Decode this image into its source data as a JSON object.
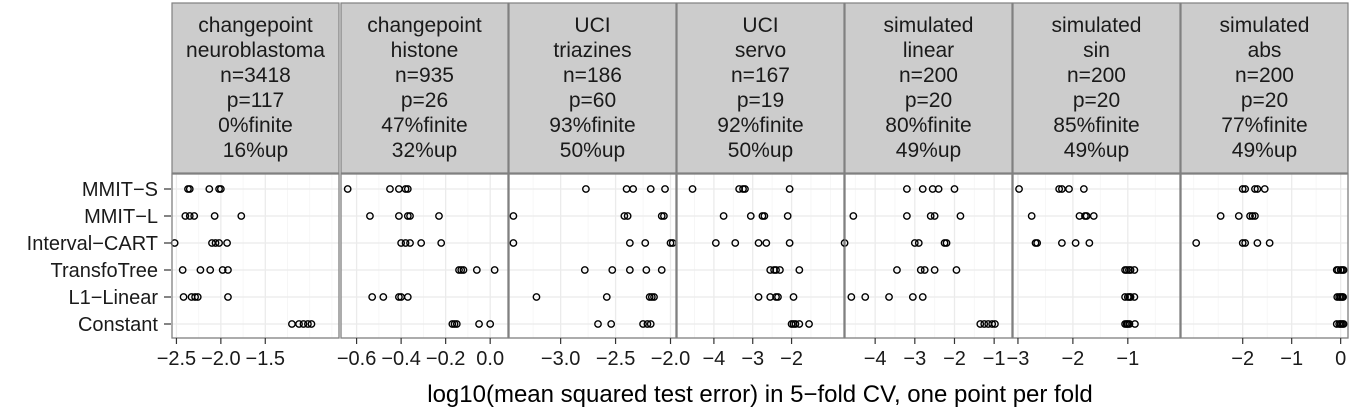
{
  "chart_data": {
    "type": "scatter",
    "xlabel": "log10(mean squared test error) in 5−fold CV, one point per fold",
    "ylabel": "",
    "title": "",
    "grid": true,
    "categories": [
      "MMIT−S",
      "MMIT−L",
      "Interval−CART",
      "TransfoTree",
      "L1−Linear",
      "Constant"
    ],
    "panels": [
      {
        "strip": [
          "changepoint",
          "neuroblastoma",
          "n=3418",
          "p=117",
          "0%finite",
          "16%up"
        ],
        "xlim": [
          -2.55,
          -0.67
        ],
        "ticks": [
          -2.5,
          -2.0,
          -1.5
        ],
        "tick_labels": [
          "−2.5",
          "−2.0",
          "−1.5"
        ],
        "points": {
          "MMIT−S": [
            -2.37,
            -2.35,
            -2.13,
            -2.02,
            -2.0
          ],
          "MMIT−L": [
            -2.4,
            -2.3,
            -2.07,
            -2.35,
            -1.77
          ],
          "Interval−CART": [
            -2.52,
            -2.1,
            -2.06,
            -2.02,
            -1.93
          ],
          "TransfoTree": [
            -2.43,
            -2.23,
            -2.12,
            -1.98,
            -1.92
          ],
          "L1−Linear": [
            -2.42,
            -2.33,
            -2.29,
            -2.26,
            -1.92
          ],
          "Constant": [
            -1.2,
            -1.12,
            -1.07,
            -1.02,
            -0.98
          ]
        }
      },
      {
        "strip": [
          "changepoint",
          "histone",
          "n=935",
          "p=26",
          "47%finite",
          "32%up"
        ],
        "xlim": [
          -0.67,
          0.08
        ],
        "ticks": [
          -0.6,
          -0.4,
          -0.2,
          0.0
        ],
        "tick_labels": [
          "−0.6",
          "−0.4",
          "−0.2",
          "0.0"
        ],
        "points": {
          "MMIT−S": [
            -0.64,
            -0.45,
            -0.41,
            -0.38,
            -0.37
          ],
          "MMIT−L": [
            -0.54,
            -0.41,
            -0.37,
            -0.36,
            -0.23
          ],
          "Interval−CART": [
            -0.4,
            -0.38,
            -0.36,
            -0.31,
            -0.22
          ],
          "TransfoTree": [
            -0.14,
            -0.13,
            -0.12,
            -0.06,
            0.02
          ],
          "L1−Linear": [
            -0.53,
            -0.48,
            -0.41,
            -0.4,
            -0.37
          ],
          "Constant": [
            -0.17,
            -0.16,
            -0.15,
            -0.05,
            -0.0
          ]
        }
      },
      {
        "strip": [
          "UCI",
          "triazines",
          "n=186",
          "p=60",
          "93%finite",
          "50%up"
        ],
        "xlim": [
          -3.47,
          -1.95
        ],
        "ticks": [
          -3.0,
          -2.5,
          -2.0
        ],
        "tick_labels": [
          "−3.0",
          "−2.5",
          "−2.0"
        ],
        "points": {
          "MMIT−S": [
            -2.77,
            -2.4,
            -2.34,
            -2.18,
            -2.05
          ],
          "MMIT−L": [
            -3.43,
            -2.42,
            -2.39,
            -2.08,
            -2.06
          ],
          "Interval−CART": [
            -3.43,
            -2.37,
            -2.23,
            -2.0,
            -1.98
          ],
          "TransfoTree": [
            -2.78,
            -2.53,
            -2.37,
            -2.22,
            -2.08
          ],
          "L1−Linear": [
            -3.22,
            -2.58,
            -2.19,
            -2.17,
            -2.15
          ],
          "Constant": [
            -2.66,
            -2.54,
            -2.25,
            -2.21,
            -2.18
          ]
        }
      },
      {
        "strip": [
          "UCI",
          "servo",
          "n=167",
          "p=19",
          "92%finite",
          "50%up"
        ],
        "xlim": [
          -4.95,
          -0.65
        ],
        "ticks": [
          -4,
          -3,
          -2
        ],
        "tick_labels": [
          "−4",
          "−3",
          "−2"
        ],
        "points": {
          "MMIT−S": [
            -4.55,
            -3.35,
            -3.25,
            -3.2,
            -2.05
          ],
          "MMIT−L": [
            -3.75,
            -3.05,
            -2.75,
            -2.7,
            -2.1
          ],
          "Interval−CART": [
            -3.95,
            -3.45,
            -2.85,
            -2.65,
            -2.05
          ],
          "TransfoTree": [
            -2.55,
            -2.45,
            -2.4,
            -2.3,
            -1.8
          ],
          "L1−Linear": [
            -2.85,
            -2.55,
            -2.4,
            -2.35,
            -1.95
          ],
          "Constant": [
            -2.0,
            -1.95,
            -1.9,
            -1.8,
            -1.55
          ]
        }
      },
      {
        "strip": [
          "simulated",
          "linear",
          "n=200",
          "p=20",
          "80%finite",
          "49%up"
        ],
        "xlim": [
          -4.76,
          -0.55
        ],
        "ticks": [
          -4,
          -3,
          -2,
          -1
        ],
        "tick_labels": [
          "−4",
          "−3",
          "−2",
          "−1"
        ],
        "points": {
          "MMIT−S": [
            -3.2,
            -2.8,
            -2.55,
            -2.4,
            -2.0
          ],
          "MMIT−L": [
            -4.55,
            -3.2,
            -2.6,
            -2.5,
            -1.85
          ],
          "Interval−CART": [
            -4.77,
            -3.0,
            -2.9,
            -2.25,
            -2.2
          ],
          "TransfoTree": [
            -3.45,
            -2.85,
            -2.75,
            -2.5,
            -1.95
          ],
          "L1−Linear": [
            -4.6,
            -4.25,
            -3.65,
            -3.05,
            -2.8
          ],
          "Constant": [
            -1.35,
            -1.25,
            -1.15,
            -1.05,
            -0.98
          ]
        }
      },
      {
        "strip": [
          "simulated",
          "sin",
          "n=200",
          "p=20",
          "85%finite",
          "49%up"
        ],
        "xlim": [
          -3.09,
          -0.05
        ],
        "ticks": [
          -3,
          -2,
          -1
        ],
        "tick_labels": [
          "−3",
          "−2",
          "−1"
        ],
        "points": {
          "MMIT−S": [
            -2.98,
            -2.25,
            -2.2,
            -2.07,
            -1.8
          ],
          "MMIT−L": [
            -2.75,
            -1.88,
            -1.78,
            -1.75,
            -1.62
          ],
          "Interval−CART": [
            -2.68,
            -2.65,
            -2.2,
            -1.95,
            -1.7
          ],
          "TransfoTree": [
            -1.05,
            -1.02,
            -0.98,
            -0.95,
            -0.88
          ],
          "L1−Linear": [
            -1.05,
            -1.0,
            -0.97,
            -0.95,
            -0.88
          ],
          "Constant": [
            -1.05,
            -1.02,
            -1.0,
            -0.97,
            -0.87
          ]
        }
      },
      {
        "strip": [
          "simulated",
          "abs",
          "n=200",
          "p=20",
          "77%finite",
          "49%up"
        ],
        "xlim": [
          -3.26,
          0.15
        ],
        "ticks": [
          -2,
          -1,
          0
        ],
        "tick_labels": [
          "−2",
          "−1",
          "0"
        ],
        "points": {
          "MMIT−S": [
            -2.0,
            -1.95,
            -1.75,
            -1.7,
            -1.55
          ],
          "MMIT−L": [
            -2.45,
            -2.08,
            -1.85,
            -1.8,
            -1.75
          ],
          "Interval−CART": [
            -2.95,
            -2.0,
            -1.95,
            -1.7,
            -1.45
          ],
          "TransfoTree": [
            -0.08,
            -0.05,
            0.0,
            0.03,
            0.06
          ],
          "L1−Linear": [
            -0.07,
            -0.03,
            0.0,
            0.03,
            0.05
          ],
          "Constant": [
            -0.08,
            -0.03,
            0.0,
            0.03,
            0.06
          ]
        }
      }
    ]
  }
}
